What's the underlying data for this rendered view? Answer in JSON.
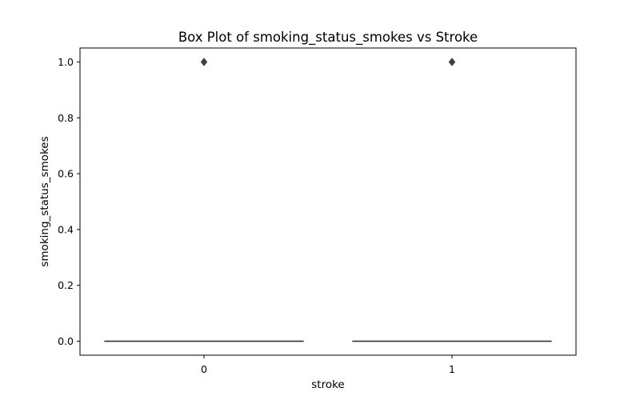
{
  "chart_data": {
    "type": "box",
    "title": "Box Plot of smoking_status_smokes vs Stroke",
    "xlabel": "stroke",
    "ylabel": "smoking_status_smokes",
    "categories": [
      "0",
      "1"
    ],
    "ylim": [
      -0.05,
      1.05
    ],
    "yticks": [
      0.0,
      0.2,
      0.4,
      0.6,
      0.8,
      1.0
    ],
    "ytick_labels": [
      "0.0",
      "0.2",
      "0.4",
      "0.6",
      "0.8",
      "1.0"
    ],
    "boxes": [
      {
        "category": "0",
        "q1": 0,
        "median": 0,
        "q3": 0,
        "whisker_low": 0,
        "whisker_high": 0,
        "outliers": [
          1
        ]
      },
      {
        "category": "1",
        "q1": 0,
        "median": 0,
        "q3": 0,
        "whisker_low": 0,
        "whisker_high": 0,
        "outliers": [
          1
        ]
      }
    ],
    "colors": {
      "box_line": "#3f3f3f",
      "outlier": "#3f3f3f",
      "axes": "#000000"
    }
  }
}
